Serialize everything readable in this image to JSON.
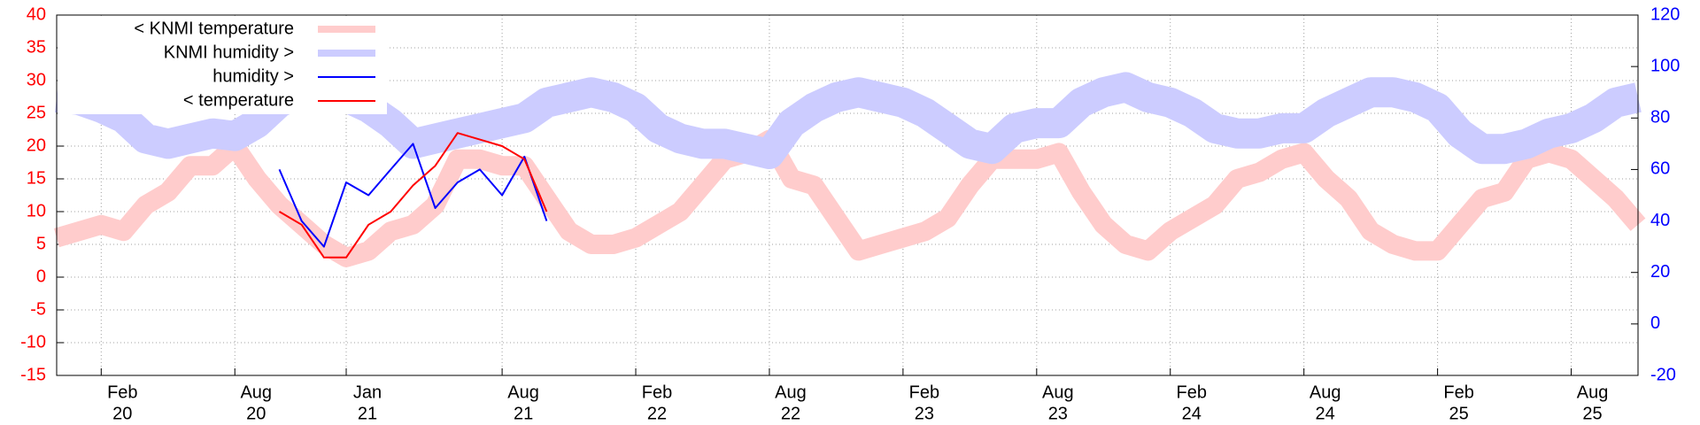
{
  "chart_data": {
    "type": "line",
    "x": [
      "2019-12",
      "2020-01",
      "2020-02",
      "2020-03",
      "2020-04",
      "2020-05",
      "2020-06",
      "2020-07",
      "2020-08",
      "2020-09",
      "2020-10",
      "2020-11",
      "2020-12",
      "2021-01",
      "2021-02",
      "2021-03",
      "2021-04",
      "2021-05",
      "2021-06",
      "2021-07",
      "2021-08",
      "2021-09",
      "2021-10",
      "2021-11",
      "2021-12",
      "2022-01",
      "2022-02",
      "2022-03",
      "2022-04",
      "2022-05",
      "2022-06",
      "2022-07",
      "2022-08",
      "2022-09",
      "2022-10",
      "2022-11",
      "2022-12",
      "2023-01",
      "2023-02",
      "2023-03",
      "2023-04",
      "2023-05",
      "2023-06",
      "2023-07",
      "2023-08",
      "2023-09",
      "2023-10",
      "2023-11",
      "2023-12",
      "2024-01",
      "2024-02",
      "2024-03",
      "2024-04",
      "2024-05",
      "2024-06",
      "2024-07",
      "2024-08",
      "2024-09",
      "2024-10",
      "2024-11",
      "2024-12",
      "2025-01",
      "2025-02",
      "2025-03",
      "2025-04",
      "2025-05",
      "2025-06",
      "2025-07",
      "2025-08",
      "2025-09",
      "2025-10",
      "2025-11"
    ],
    "series": [
      {
        "name": "< KNMI temperature",
        "color": "#ffcccc",
        "axis": "y",
        "values": [
          6,
          7,
          8,
          7,
          11,
          13,
          17,
          17,
          20,
          15,
          11,
          8,
          5,
          3,
          4,
          7,
          8,
          11,
          18,
          18,
          17,
          17,
          12,
          7,
          5,
          5,
          6,
          8,
          10,
          14,
          18,
          19,
          21,
          15,
          14,
          9,
          4,
          5,
          6,
          7,
          9,
          14,
          18,
          18,
          18,
          19,
          13,
          8,
          5,
          4,
          7,
          9,
          11,
          15,
          16,
          18,
          19,
          15,
          12,
          7,
          5,
          4,
          4,
          8,
          12,
          13,
          18,
          19,
          18,
          15,
          12,
          8
        ]
      },
      {
        "name": "KNMI humidity >",
        "color": "#ccccff",
        "axis": "y2",
        "values": [
          88,
          87,
          84,
          80,
          72,
          70,
          72,
          74,
          73,
          78,
          86,
          90,
          90,
          88,
          84,
          78,
          70,
          72,
          74,
          76,
          78,
          80,
          86,
          88,
          90,
          88,
          84,
          76,
          72,
          70,
          70,
          68,
          66,
          78,
          84,
          88,
          90,
          88,
          86,
          82,
          76,
          70,
          68,
          76,
          78,
          78,
          86,
          90,
          92,
          88,
          86,
          82,
          76,
          74,
          74,
          76,
          76,
          82,
          86,
          90,
          90,
          88,
          84,
          74,
          68,
          68,
          70,
          74,
          76,
          80,
          86,
          88
        ]
      },
      {
        "name": "humidity >",
        "color": "#0000ff",
        "axis": "y2",
        "values": [
          null,
          null,
          null,
          null,
          null,
          null,
          null,
          null,
          null,
          null,
          60,
          40,
          30,
          55,
          50,
          60,
          70,
          45,
          55,
          60,
          50,
          65,
          40,
          null,
          null,
          null,
          null,
          null,
          null,
          null,
          null,
          null,
          null,
          null,
          null,
          null,
          null,
          null,
          null,
          null,
          null,
          null,
          null,
          null,
          null,
          null,
          null,
          null,
          null,
          null,
          null,
          null,
          null,
          null,
          null,
          null,
          null,
          null,
          null,
          null,
          null,
          null,
          null,
          null,
          null,
          null,
          null,
          null,
          null,
          null,
          null,
          null
        ]
      },
      {
        "name": "< temperature",
        "color": "#ff0000",
        "axis": "y",
        "values": [
          null,
          null,
          null,
          null,
          null,
          null,
          null,
          null,
          null,
          null,
          10,
          8,
          3,
          3,
          8,
          10,
          14,
          17,
          22,
          21,
          20,
          18,
          10,
          null,
          null,
          null,
          null,
          null,
          null,
          null,
          null,
          null,
          null,
          null,
          null,
          null,
          null,
          null,
          null,
          null,
          null,
          null,
          null,
          null,
          null,
          null,
          null,
          null,
          null,
          null,
          null,
          null,
          null,
          null,
          null,
          null,
          null,
          null,
          null,
          null,
          null,
          null,
          null,
          null,
          null,
          null,
          null,
          null,
          null,
          null,
          null,
          null
        ]
      }
    ],
    "xlim": [
      "2019-12",
      "2025-11"
    ],
    "xticks": [
      {
        "value": "2020-02",
        "label": [
          "Feb",
          "20"
        ]
      },
      {
        "value": "2020-08",
        "label": [
          "Aug",
          "20"
        ]
      },
      {
        "value": "2021-01",
        "label": [
          "Jan",
          "21"
        ]
      },
      {
        "value": "2021-08",
        "label": [
          "Aug",
          "21"
        ]
      },
      {
        "value": "2022-02",
        "label": [
          "Feb",
          "22"
        ]
      },
      {
        "value": "2022-08",
        "label": [
          "Aug",
          "22"
        ]
      },
      {
        "value": "2023-02",
        "label": [
          "Feb",
          "23"
        ]
      },
      {
        "value": "2023-08",
        "label": [
          "Aug",
          "23"
        ]
      },
      {
        "value": "2024-02",
        "label": [
          "Feb",
          "24"
        ]
      },
      {
        "value": "2024-08",
        "label": [
          "Aug",
          "24"
        ]
      },
      {
        "value": "2025-02",
        "label": [
          "Feb",
          "25"
        ]
      },
      {
        "value": "2025-08",
        "label": [
          "Aug",
          "25"
        ]
      }
    ],
    "ylim": [
      -15,
      40
    ],
    "yticks": [
      -15,
      -10,
      -5,
      0,
      5,
      10,
      15,
      20,
      25,
      30,
      35,
      40
    ],
    "ycolor": "#ff0000",
    "y2lim": [
      -20,
      120
    ],
    "y2ticks": [
      -20,
      0,
      20,
      40,
      60,
      80,
      100,
      120
    ],
    "y2color": "#0000ff",
    "grid": true,
    "legend": "top-left"
  }
}
